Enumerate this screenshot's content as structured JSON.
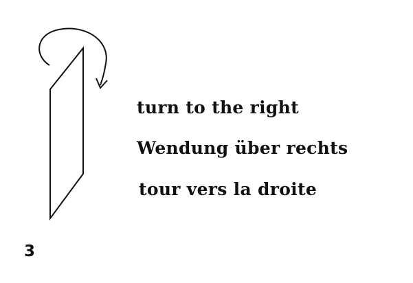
{
  "captions": {
    "english": "turn to the right",
    "german": "Wendung über rechts",
    "french": "tour vers la droite"
  },
  "figure_number": "3",
  "colors": {
    "ink": "#111111",
    "background": "#ffffff"
  },
  "icons": {
    "rotation": "clockwise-rotation-arrow-icon"
  }
}
